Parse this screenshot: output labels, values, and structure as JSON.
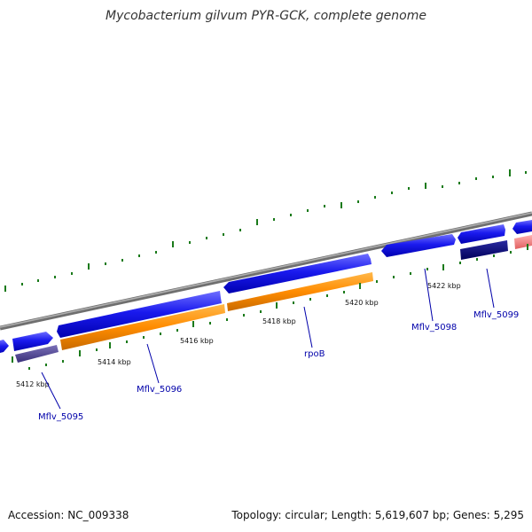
{
  "title": "Mycobacterium gilvum PYR-GCK, complete genome",
  "footer": {
    "accession": "Accession: NC_009338",
    "summary": "Topology: circular; Length: 5,619,607 bp; Genes: 5,295"
  },
  "colors": {
    "backbone": "#888888",
    "ticks": "#1a7a1a",
    "forward_cds": "#1a1aee",
    "reverse_cds_1": "#4a3f8c",
    "reverse_cds_2": "#00007a",
    "rrna_orange": "#ff8c00",
    "pink_feature": "#f08080",
    "label_color": "#0000aa"
  },
  "scale_labels": [
    "5412 kbp",
    "5414 kbp",
    "5416 kbp",
    "5418 kbp",
    "5420 kbp",
    "5422 kbp"
  ],
  "gene_labels": [
    "Mflv_5095",
    "Mflv_5096",
    "rpoB",
    "Mflv_5098",
    "Mflv_5099"
  ]
}
